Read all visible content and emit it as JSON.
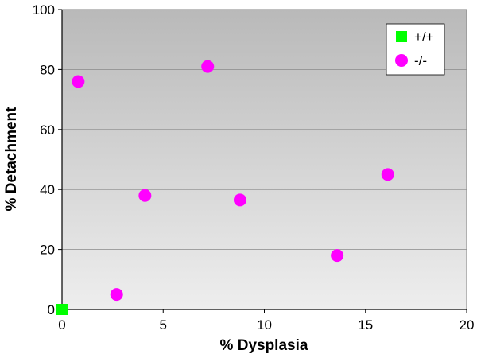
{
  "chart_data": {
    "type": "scatter",
    "title": "",
    "xlabel": "% Dysplasia",
    "ylabel": "% Detachment",
    "xlim": [
      0,
      20
    ],
    "ylim": [
      0,
      100
    ],
    "x_ticks": [
      0,
      5,
      10,
      15,
      20
    ],
    "y_ticks": [
      0,
      20,
      40,
      60,
      80,
      100
    ],
    "grid": "horizontal",
    "legend_position": "top-right",
    "series": [
      {
        "name": "+/+",
        "marker": "square",
        "color": "#00ff00",
        "points": [
          {
            "x": 0,
            "y": 0
          }
        ]
      },
      {
        "name": "-/-",
        "marker": "circle",
        "color": "#ff00ff",
        "points": [
          {
            "x": 0.8,
            "y": 76
          },
          {
            "x": 2.7,
            "y": 5
          },
          {
            "x": 4.1,
            "y": 38
          },
          {
            "x": 7.2,
            "y": 81
          },
          {
            "x": 8.8,
            "y": 36.5
          },
          {
            "x": 13.6,
            "y": 18
          },
          {
            "x": 16.1,
            "y": 45
          }
        ]
      }
    ]
  }
}
